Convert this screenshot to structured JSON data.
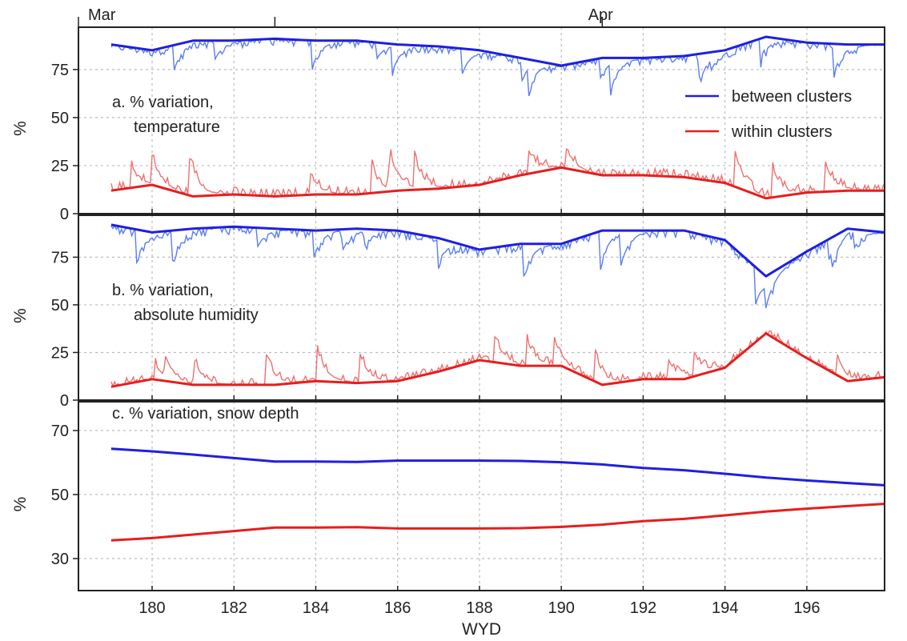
{
  "colors": {
    "between": "#1f1fe0",
    "between_daily": "#5a7df5",
    "within": "#e61e1e",
    "within_daily": "#ee7070",
    "grid": "#bdbdbd",
    "frame": "#222222"
  },
  "months": [
    {
      "label": "Mar",
      "x": 178.2
    },
    {
      "label": "Apr",
      "x": 191.0
    }
  ],
  "legend": [
    {
      "label": "between clusters",
      "color_key": "between"
    },
    {
      "label": "within clusters",
      "color_key": "within"
    }
  ],
  "chart_data": [
    {
      "type": "line",
      "panel": "a",
      "title_line1": "a. % variation,",
      "title_line2": "temperature",
      "xlabel": "",
      "ylabel": "%",
      "xlim": [
        178.2,
        197.9
      ],
      "ylim": [
        0,
        97
      ],
      "yticks": [
        0,
        25,
        50,
        75
      ],
      "grid": true,
      "legend_position": "right",
      "series": [
        {
          "name": "between clusters",
          "x": [
            179,
            180,
            181,
            182,
            183,
            184,
            185,
            186,
            187,
            188,
            189,
            190,
            191,
            192,
            193,
            194,
            195,
            196,
            197,
            197.9
          ],
          "values": [
            88,
            85,
            90,
            90,
            91,
            90,
            90,
            88,
            87,
            85,
            81,
            77,
            81,
            81,
            82,
            85,
            92,
            89,
            88,
            88
          ]
        },
        {
          "name": "within clusters",
          "x": [
            179,
            180,
            181,
            182,
            183,
            184,
            185,
            186,
            187,
            188,
            189,
            190,
            191,
            192,
            193,
            194,
            195,
            196,
            197,
            197.9
          ],
          "values": [
            12,
            15,
            9,
            10,
            9,
            10,
            10,
            12,
            13,
            15,
            20,
            24,
            20,
            20,
            19,
            16,
            8,
            11,
            12,
            12
          ]
        }
      ]
    },
    {
      "type": "line",
      "panel": "b",
      "title_line1": "b. % variation,",
      "title_line2": "absolute humidity",
      "xlabel": "",
      "ylabel": "%",
      "xlim": [
        178.2,
        197.9
      ],
      "ylim": [
        0,
        97
      ],
      "yticks": [
        0,
        25,
        50,
        75
      ],
      "grid": true,
      "series": [
        {
          "name": "between clusters",
          "x": [
            179,
            180,
            181,
            182,
            183,
            184,
            185,
            186,
            187,
            188,
            189,
            190,
            191,
            192,
            193,
            194,
            195,
            196,
            197,
            197.9
          ],
          "values": [
            92,
            88,
            90,
            91,
            90,
            89,
            90,
            89,
            85,
            79,
            82,
            82,
            89,
            89,
            89,
            84,
            65,
            78,
            90,
            88
          ]
        },
        {
          "name": "within clusters",
          "x": [
            179,
            180,
            181,
            182,
            183,
            184,
            185,
            186,
            187,
            188,
            189,
            190,
            191,
            192,
            193,
            194,
            195,
            196,
            197,
            197.9
          ],
          "values": [
            7,
            11,
            8,
            8,
            8,
            10,
            9,
            10,
            15,
            21,
            18,
            18,
            8,
            11,
            11,
            17,
            35,
            22,
            10,
            12
          ]
        }
      ]
    },
    {
      "type": "line",
      "panel": "c",
      "title": "c. % variation, snow depth",
      "xlabel": "WYD",
      "ylabel": "%",
      "xlim": [
        178.2,
        197.9
      ],
      "ylim": [
        20,
        79
      ],
      "yticks": [
        30,
        50,
        70
      ],
      "xticks": [
        180,
        182,
        184,
        186,
        188,
        190,
        192,
        194,
        196
      ],
      "grid": true,
      "series": [
        {
          "name": "between clusters",
          "x": [
            179,
            180,
            181,
            182,
            183,
            184,
            185,
            186,
            187,
            188,
            189,
            190,
            191,
            192,
            193,
            194,
            195,
            196,
            197,
            197.9
          ],
          "values": [
            64.3,
            63.5,
            62.5,
            61.4,
            60.3,
            60.3,
            60.2,
            60.6,
            60.6,
            60.6,
            60.5,
            60.1,
            59.4,
            58.3,
            57.6,
            56.5,
            55.3,
            54.4,
            53.6,
            52.9
          ]
        },
        {
          "name": "within clusters",
          "x": [
            179,
            180,
            181,
            182,
            183,
            184,
            185,
            186,
            187,
            188,
            189,
            190,
            191,
            192,
            193,
            194,
            195,
            196,
            197,
            197.9
          ],
          "values": [
            35.7,
            36.4,
            37.5,
            38.6,
            39.7,
            39.7,
            39.8,
            39.4,
            39.4,
            39.4,
            39.5,
            39.9,
            40.6,
            41.7,
            42.4,
            43.5,
            44.7,
            45.6,
            46.4,
            47.1
          ]
        }
      ]
    }
  ]
}
